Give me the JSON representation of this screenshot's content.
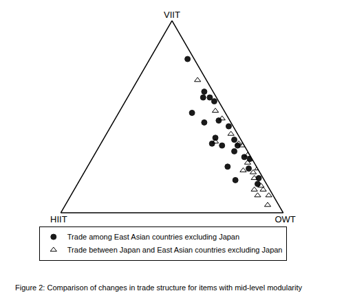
{
  "chart_data": {
    "type": "ternary",
    "caption": "Figure 2: Comparison of changes in trade structure for items with mid-level modularity",
    "a_label": "VIIT",
    "b_label": "HIIT",
    "c_label": "OWT",
    "tick_labels": false,
    "grid": false,
    "legend": "bottom",
    "series": [
      {
        "name": "Trade among East Asian countries excluding Japan",
        "color": "#1a1a1a",
        "marker": "circle",
        "a": [
          80,
          63,
          60,
          60,
          58,
          52,
          47,
          48,
          45,
          39,
          36,
          35,
          38,
          35,
          32,
          29,
          28,
          24,
          23,
          18,
          17,
          15
        ],
        "b": [
          3,
          4,
          6,
          3,
          2,
          15,
          12,
          5,
          2,
          11,
          14,
          10,
          3,
          3,
          6,
          3,
          1,
          13,
          4,
          2,
          13,
          4
        ],
        "c": [
          17,
          33,
          34,
          37,
          40,
          33,
          41,
          47,
          53,
          50,
          50,
          55,
          59,
          62,
          62,
          68,
          71,
          63,
          73,
          80,
          70,
          81
        ]
      },
      {
        "name": "Trade between Japan and East Asian countries excluding Japan",
        "color": "#000000",
        "marker": "triangle-up-open",
        "a": [
          69,
          53,
          49,
          37,
          41,
          35,
          30,
          26,
          23,
          21,
          22,
          18,
          14,
          12,
          12,
          9,
          9,
          4,
          36
        ],
        "b": [
          4,
          4,
          3,
          12,
          3,
          1,
          1,
          3,
          0,
          3,
          7,
          4,
          3,
          7,
          3,
          7,
          2,
          5,
          2
        ],
        "c": [
          27,
          43,
          48,
          51,
          56,
          64,
          69,
          71,
          77,
          76,
          71,
          78,
          83,
          81,
          85,
          84,
          89,
          91,
          62
        ]
      }
    ]
  }
}
